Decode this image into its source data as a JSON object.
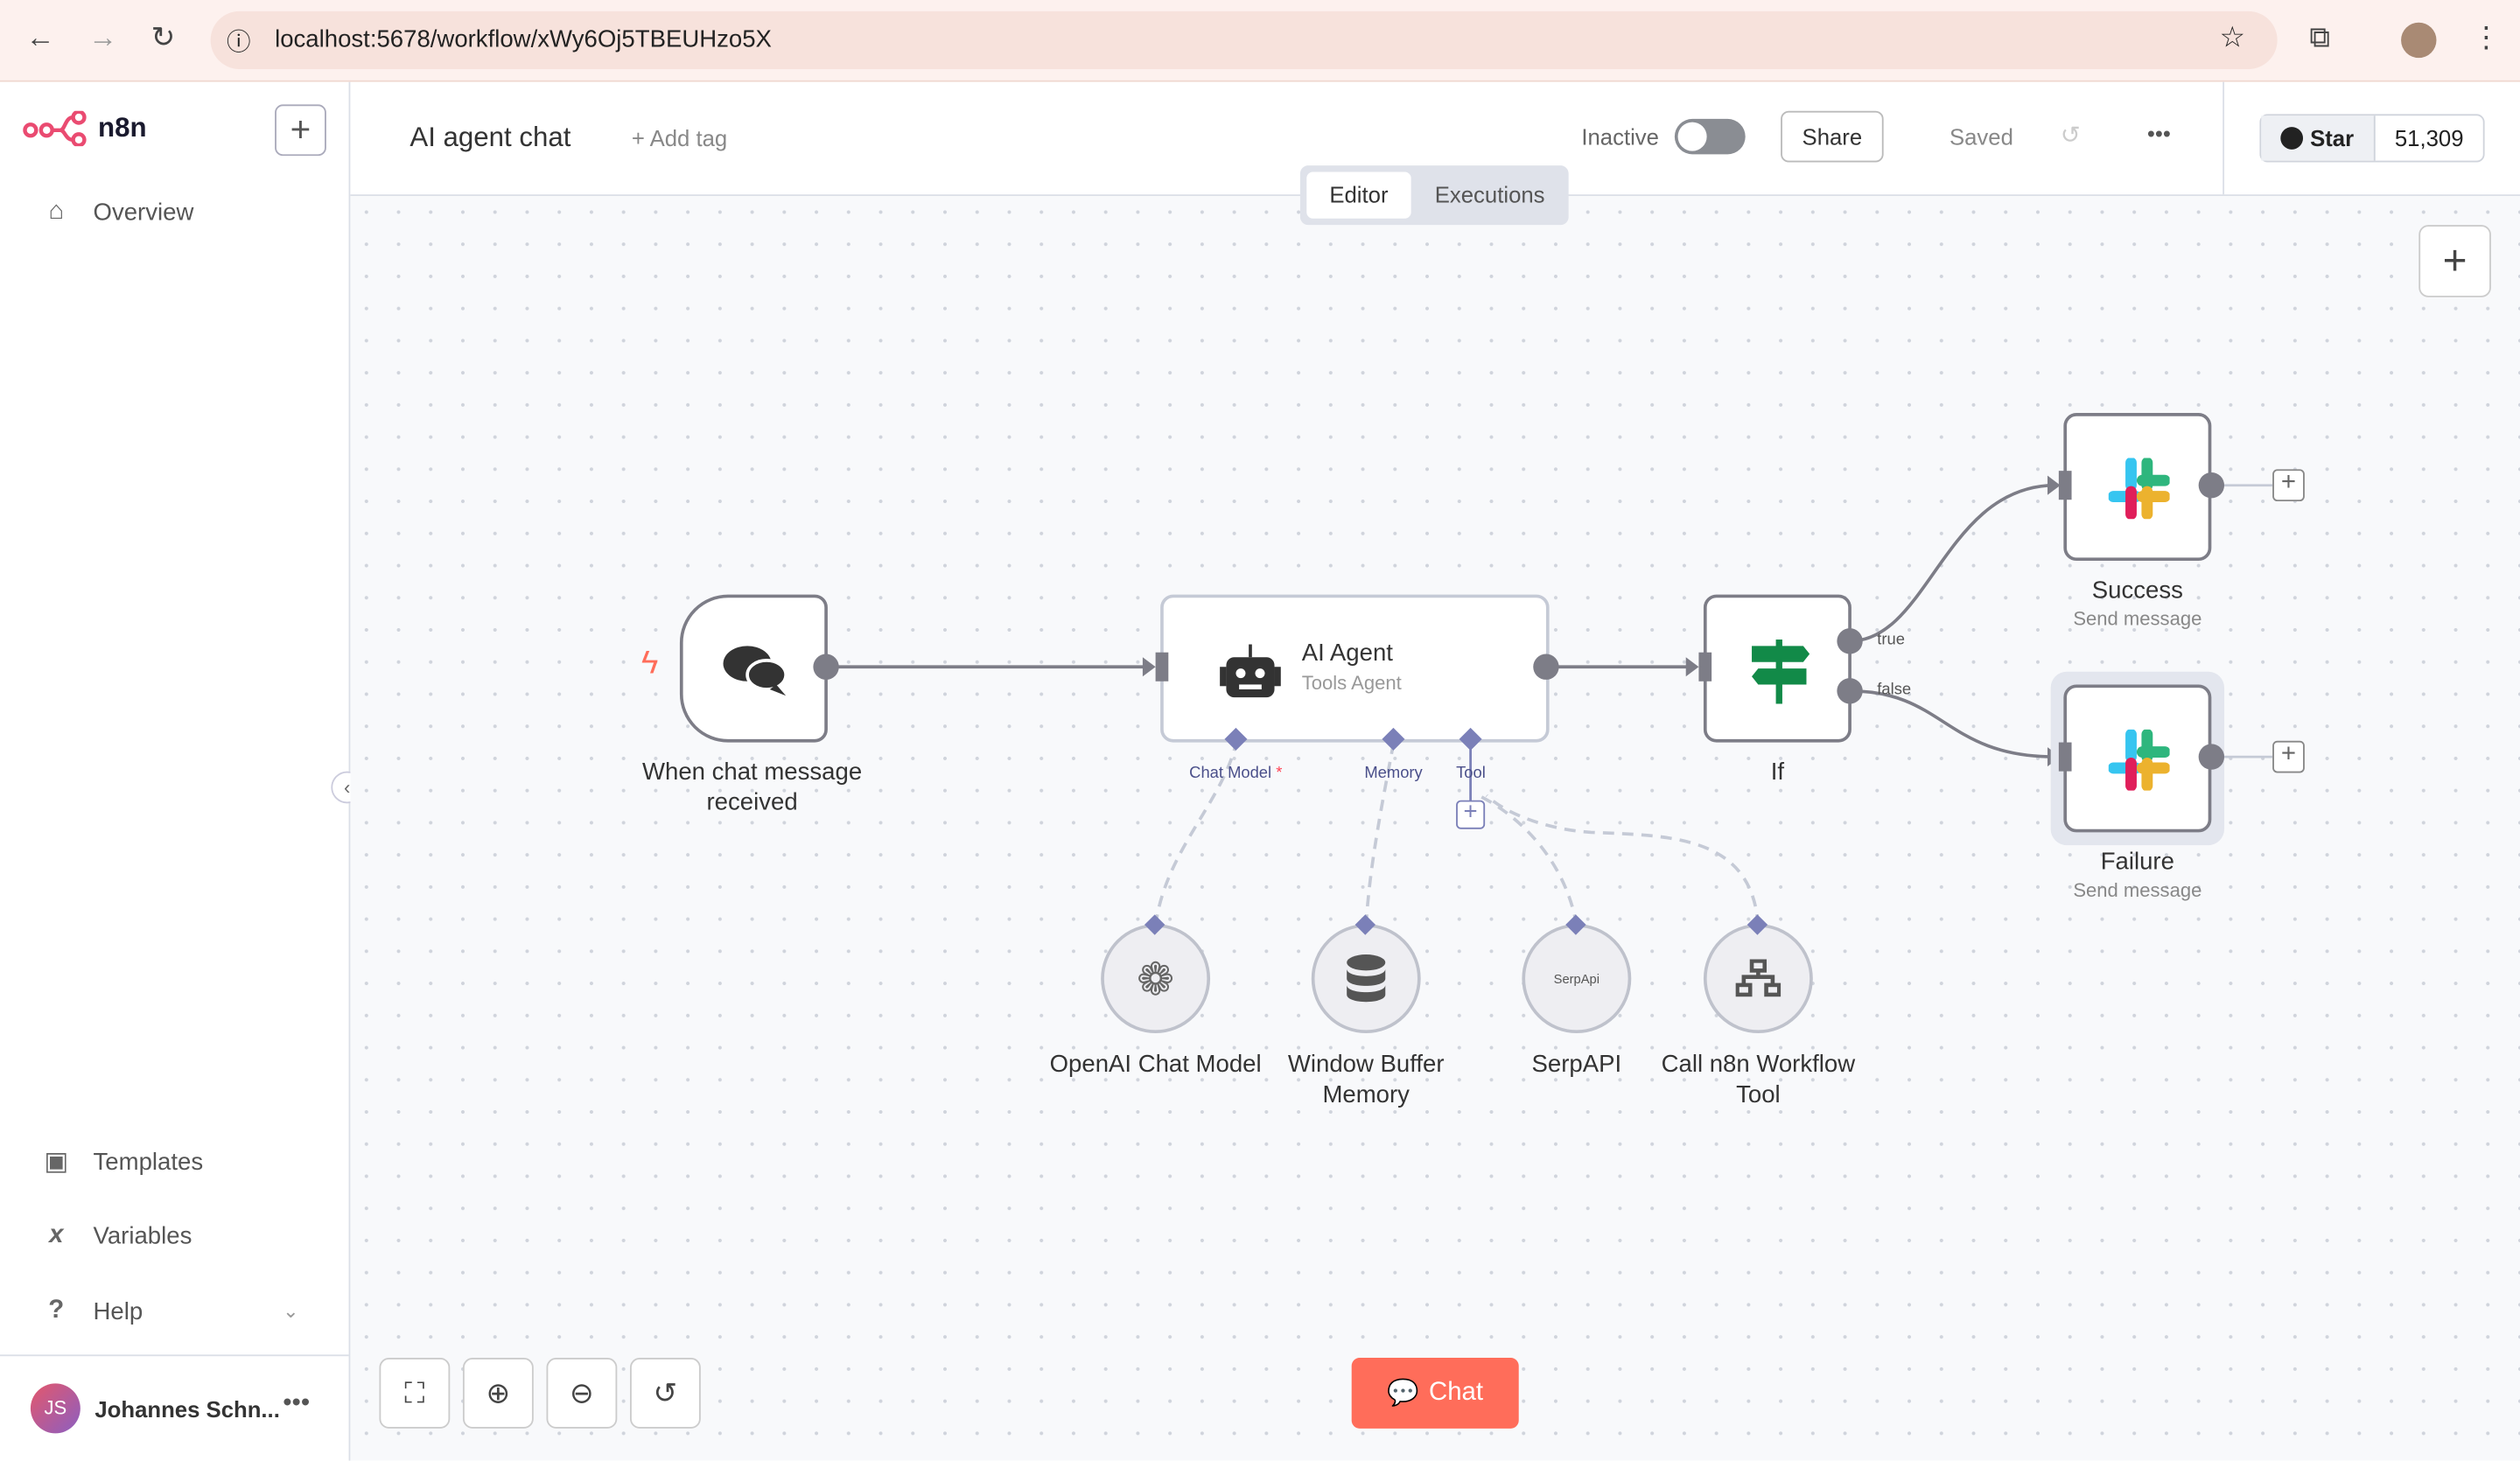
{
  "browser": {
    "url": "localhost:5678/workflow/xWy6Oj5TBEUHzo5X"
  },
  "sidebar": {
    "brand": "n8n",
    "items": [
      {
        "label": "Overview",
        "icon": "home-icon"
      },
      {
        "label": "Templates",
        "icon": "box-icon"
      },
      {
        "label": "Variables",
        "icon": "variable-icon"
      },
      {
        "label": "Help",
        "icon": "question-icon"
      }
    ],
    "user": {
      "initials": "JS",
      "name": "Johannes Schn..."
    }
  },
  "header": {
    "title": "AI agent chat",
    "add_tag": "+ Add tag",
    "status": "Inactive",
    "active": false,
    "share": "Share",
    "saved": "Saved",
    "github": {
      "star": "Star",
      "count": "51,309"
    }
  },
  "tabs": [
    {
      "label": "Editor",
      "active": true
    },
    {
      "label": "Executions",
      "active": false
    }
  ],
  "nodes": {
    "trigger": {
      "title": "When chat message received"
    },
    "agent": {
      "title": "AI Agent",
      "subtitle": "Tools Agent",
      "handles": {
        "chat_model": "Chat Model",
        "required": "*",
        "memory": "Memory",
        "tool": "Tool"
      }
    },
    "if": {
      "title": "If",
      "outputs": {
        "true": "true",
        "false": "false"
      }
    },
    "success": {
      "title": "Success",
      "subtitle": "Send message"
    },
    "failure": {
      "title": "Failure",
      "subtitle": "Send message"
    },
    "openai": {
      "title": "OpenAI Chat Model"
    },
    "memory": {
      "title": "Window Buffer Memory"
    },
    "serpapi": {
      "title": "SerpAPI",
      "logo_text": "SerpApi"
    },
    "workflow_tool": {
      "title": "Call n8n Workflow Tool"
    }
  },
  "chat_button": "Chat",
  "colors": {
    "brand": "#ea4b71",
    "chat": "#ff6d5a",
    "handle": "#7b80b8",
    "if_green": "#128a48"
  }
}
